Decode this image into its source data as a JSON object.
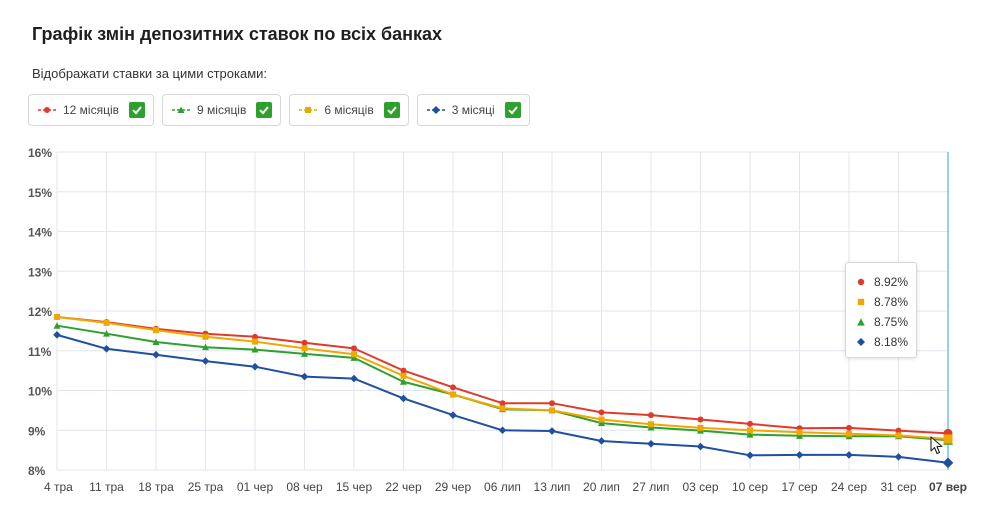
{
  "title": "Графік змін депозитних ставок по всіх банках",
  "subtitle": "Відображати ставки за цими строками:",
  "legend": [
    {
      "label": "12 місяців",
      "color": "#e03a2a",
      "marker": "circle-icon",
      "checked": true
    },
    {
      "label": "9 місяців",
      "color": "#2ea02e",
      "marker": "triangle-icon",
      "checked": true
    },
    {
      "label": "6 місяців",
      "color": "#f0a800",
      "marker": "square-icon",
      "checked": true
    },
    {
      "label": "3 місяці",
      "color": "#1f4fa0",
      "marker": "diamond-icon",
      "checked": true
    }
  ],
  "check_color": "#2ea02e",
  "tooltip": [
    {
      "value": "8.92%",
      "color": "#e03a2a",
      "marker": "circle-icon"
    },
    {
      "value": "8.78%",
      "color": "#f0a800",
      "marker": "square-icon"
    },
    {
      "value": "8.75%",
      "color": "#2ea02e",
      "marker": "triangle-icon"
    },
    {
      "value": "8.18%",
      "color": "#1f4fa0",
      "marker": "diamond-icon"
    }
  ],
  "chart_data": {
    "type": "line",
    "x": [
      "04 тра",
      "11 тра",
      "18 тра",
      "25 тра",
      "01 чер",
      "08 чер",
      "15 чер",
      "22 чер",
      "29 чер",
      "06 лип",
      "13 лип",
      "20 лип",
      "27 лип",
      "03 сер",
      "10 сер",
      "17 сер",
      "24 сер",
      "31 сер",
      "07 вер"
    ],
    "x_tick_labels": [
      "4 тра",
      "11 тра",
      "18 тра",
      "25 тра",
      "01 чер",
      "08 чер",
      "15 чер",
      "22 чер",
      "29 чер",
      "06 лип",
      "13 лип",
      "20 лип",
      "27 лип",
      "03 сер",
      "10 сер",
      "17 сер",
      "24 сер",
      "31 сер",
      "07 вер"
    ],
    "highlighted_x": "07 вер",
    "ylim": [
      8,
      16
    ],
    "y_ticks": [
      "8%",
      "9%",
      "10%",
      "11%",
      "12%",
      "13%",
      "14%",
      "15%",
      "16%"
    ],
    "grid": true,
    "series": [
      {
        "name": "12 місяців",
        "color": "#e03a2a",
        "marker": "circle",
        "values": [
          11.85,
          11.72,
          11.55,
          11.43,
          11.35,
          11.2,
          11.06,
          10.5,
          10.08,
          9.68,
          9.68,
          9.45,
          9.38,
          9.27,
          9.16,
          9.05,
          9.06,
          8.99,
          8.92
        ]
      },
      {
        "name": "9 місяців",
        "color": "#2ea02e",
        "marker": "triangle",
        "values": [
          11.63,
          11.43,
          11.22,
          11.09,
          11.03,
          10.92,
          10.82,
          10.22,
          9.9,
          9.53,
          9.5,
          9.18,
          9.07,
          8.99,
          8.89,
          8.86,
          8.85,
          8.85,
          8.75
        ]
      },
      {
        "name": "6 місяців",
        "color": "#f0a800",
        "marker": "square",
        "values": [
          11.85,
          11.7,
          11.52,
          11.35,
          11.23,
          11.06,
          10.91,
          10.37,
          9.9,
          9.55,
          9.5,
          9.27,
          9.15,
          9.06,
          9.0,
          8.95,
          8.91,
          8.87,
          8.78
        ]
      },
      {
        "name": "3 місяці",
        "color": "#1f4fa0",
        "marker": "diamond",
        "values": [
          11.4,
          11.05,
          10.9,
          10.74,
          10.6,
          10.35,
          10.3,
          9.8,
          9.38,
          9.0,
          8.98,
          8.73,
          8.66,
          8.59,
          8.37,
          8.38,
          8.38,
          8.33,
          8.18
        ]
      }
    ]
  }
}
